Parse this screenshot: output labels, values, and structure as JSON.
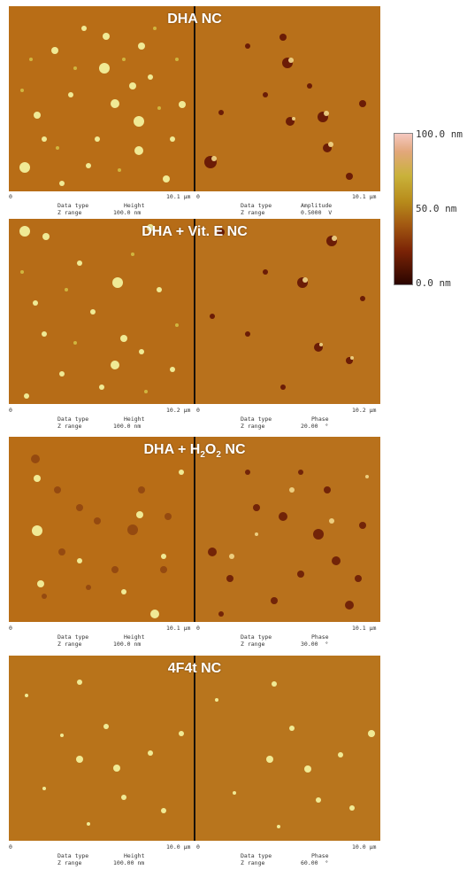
{
  "panels": [
    {
      "title": "DHA NC",
      "axis_left": {
        "start": "0",
        "end": "10.1 µm"
      },
      "axis_right": {
        "start": "0",
        "end": "10.1 µm"
      },
      "left_meta": {
        "datatype_label": "Data type",
        "datatype_value": "Height",
        "zrange_label": "Z range",
        "zrange_value": "100.0 nm"
      },
      "right_meta": {
        "datatype_label": "Data type",
        "datatype_value": "Amplitude",
        "zrange_label": "Z range",
        "zrange_value": "0.5000  V"
      }
    },
    {
      "title": "DHA + Vit. E NC",
      "axis_left": {
        "start": "0",
        "end": "10.2 µm"
      },
      "axis_right": {
        "start": "0",
        "end": "10.2 µm"
      },
      "left_meta": {
        "datatype_label": "Data type",
        "datatype_value": "Height",
        "zrange_label": "Z range",
        "zrange_value": "100.0 nm"
      },
      "right_meta": {
        "datatype_label": "Data type",
        "datatype_value": "Phase",
        "zrange_label": "Z range",
        "zrange_value": "20.00  °"
      }
    },
    {
      "title_prefix": "DHA + H",
      "title_sub1": "2",
      "title_mid": "O",
      "title_sub2": "2",
      "title_suffix": " NC",
      "axis_left": {
        "start": "0",
        "end": "10.1 µm"
      },
      "axis_right": {
        "start": "0",
        "end": "10.1 µm"
      },
      "left_meta": {
        "datatype_label": "Data type",
        "datatype_value": "Height",
        "zrange_label": "Z range",
        "zrange_value": "100.0 nm"
      },
      "right_meta": {
        "datatype_label": "Data type",
        "datatype_value": "Phase",
        "zrange_label": "Z range",
        "zrange_value": "30.00  °"
      }
    },
    {
      "title": "4F4t NC",
      "axis_left": {
        "start": "0",
        "end": "10.0 µm"
      },
      "axis_right": {
        "start": "0",
        "end": "10.0 µm"
      },
      "left_meta": {
        "datatype_label": "Data type",
        "datatype_value": "Height",
        "zrange_label": "Z range",
        "zrange_value": "100.00 nm"
      },
      "right_meta": {
        "datatype_label": "Data type",
        "datatype_value": "Phase",
        "zrange_label": "Z range",
        "zrange_value": "60.00  °"
      }
    }
  ],
  "scale": {
    "top": "100.0 nm",
    "mid": "50.0 nm",
    "bottom": "0.0 nm"
  },
  "colors": {
    "background": "#b86d16",
    "particle_light": "#f3f19c",
    "particle_dark": "#5a1a05"
  }
}
